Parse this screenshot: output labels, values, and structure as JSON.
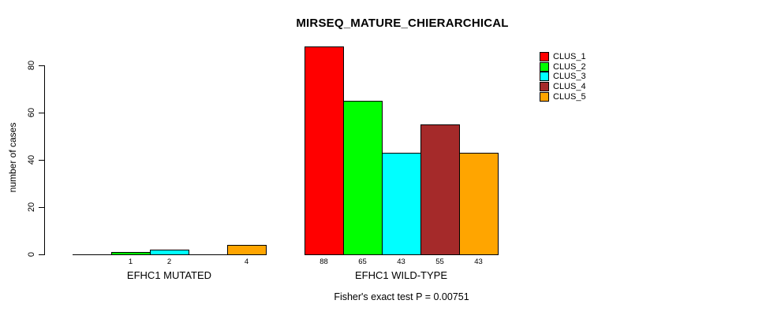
{
  "chart_data": {
    "type": "bar",
    "title": "MIRSEQ_MATURE_CHIERARCHICAL",
    "ylabel": "number of cases",
    "xlabel": "",
    "ylim": [
      0,
      88
    ],
    "yticks": [
      0,
      20,
      40,
      60,
      80
    ],
    "grid": false,
    "legend_position": "top-right",
    "series": [
      {
        "name": "CLUS_1",
        "color": "#ff0000",
        "values": [
          0,
          88
        ]
      },
      {
        "name": "CLUS_2",
        "color": "#00ff00",
        "values": [
          1,
          65
        ]
      },
      {
        "name": "CLUS_3",
        "color": "#00ffff",
        "values": [
          2,
          43
        ]
      },
      {
        "name": "CLUS_4",
        "color": "#a52a2a",
        "values": [
          0,
          55
        ]
      },
      {
        "name": "CLUS_5",
        "color": "#ffa500",
        "values": [
          4,
          43
        ]
      }
    ],
    "groups": [
      {
        "label": "EFHC1 MUTATED",
        "values": [
          0,
          1,
          2,
          0,
          4
        ],
        "bar_value_labels": [
          "",
          "1",
          "2",
          "",
          "4"
        ]
      },
      {
        "label": "EFHC1 WILD-TYPE",
        "values": [
          88,
          65,
          43,
          55,
          43
        ],
        "bar_value_labels": [
          "88",
          "65",
          "43",
          "55",
          "43"
        ]
      }
    ],
    "annotation": "Fisher's exact test P = 0.00751"
  }
}
